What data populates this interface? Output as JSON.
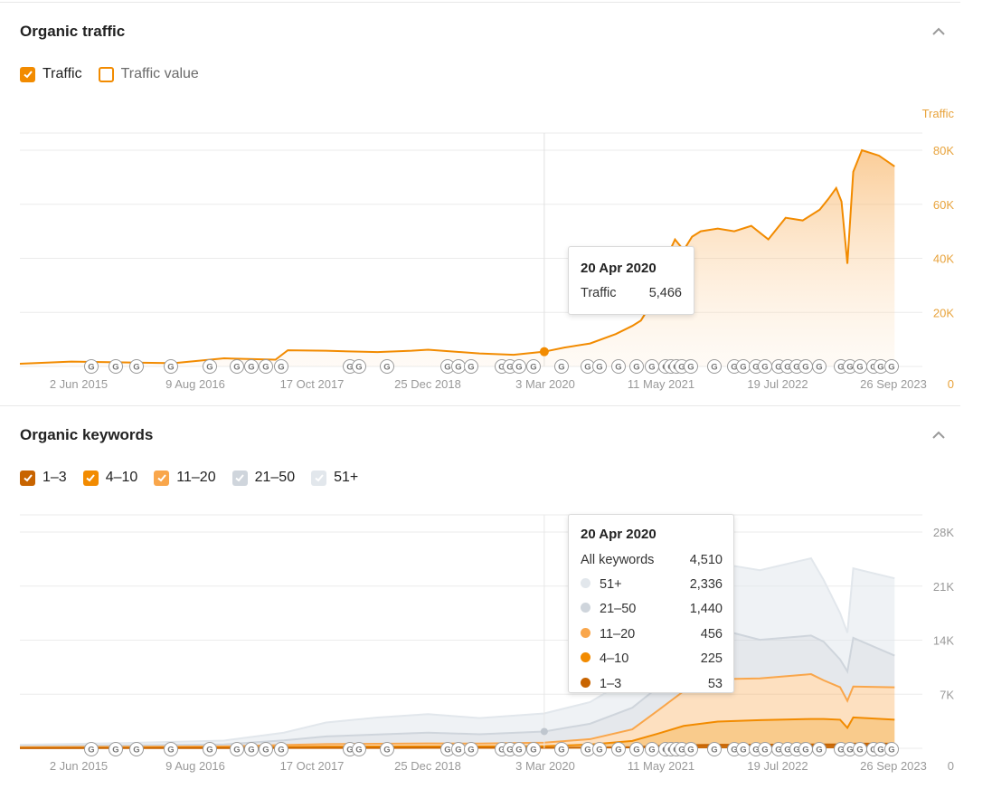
{
  "colors": {
    "traffic_orange": "#f28b00",
    "dark_orange": "#c86400",
    "mid_orange": "#f28b00",
    "light_orange": "#f9a64b",
    "gray_2150": "#cfd5dc",
    "gray_51": "#e2e7ec",
    "axis_text": "#999999",
    "traffic_axis_text": "#e8a33c"
  },
  "traffic": {
    "title": "Organic traffic",
    "legend": [
      {
        "label": "Traffic",
        "checked": true
      },
      {
        "label": "Traffic value",
        "checked": false
      }
    ],
    "tooltip": {
      "date": "20 Apr 2020",
      "label": "Traffic",
      "value": "5,466"
    },
    "chart_data": {
      "type": "area",
      "title": "",
      "xlabel": "",
      "ylabel": "Traffic",
      "ylim": [
        0,
        80000
      ],
      "ytick_labels": [
        "0",
        "20K",
        "40K",
        "60K",
        "80K"
      ],
      "ytick_values": [
        0,
        20000,
        40000,
        60000,
        80000
      ],
      "xtick_labels": [
        "2 Jun 2015",
        "9 Aug 2016",
        "17 Oct 2017",
        "25 Dec 2018",
        "3 Mar 2020",
        "11 May 2021",
        "19 Jul 2022",
        "26 Sep 2023"
      ],
      "x_range": [
        "2015-03-01",
        "2023-12-15"
      ],
      "grid": true,
      "highlight": {
        "x": "2020-04-20",
        "y": 5466
      },
      "series": [
        {
          "name": "Traffic",
          "color": "#f28b00",
          "x": [
            "2015-03-01",
            "2015-09-01",
            "2016-03-01",
            "2016-09-01",
            "2017-03-01",
            "2017-09-01",
            "2017-10-15",
            "2018-03-01",
            "2018-09-01",
            "2019-01-01",
            "2019-03-01",
            "2019-09-01",
            "2020-01-01",
            "2020-04-20",
            "2020-07-01",
            "2020-10-01",
            "2021-01-01",
            "2021-03-01",
            "2021-04-01",
            "2021-05-01",
            "2021-06-01",
            "2021-07-01",
            "2021-08-01",
            "2021-09-01",
            "2021-10-01",
            "2021-11-01",
            "2022-01-01",
            "2022-03-01",
            "2022-05-01",
            "2022-07-01",
            "2022-09-01",
            "2022-11-01",
            "2023-01-01",
            "2023-02-01",
            "2023-03-01",
            "2023-03-20",
            "2023-04-10",
            "2023-05-01",
            "2023-06-01",
            "2023-08-01",
            "2023-09-26"
          ],
          "y": [
            1000,
            1800,
            1500,
            1200,
            3000,
            2500,
            6000,
            5800,
            5300,
            5800,
            6200,
            4800,
            4300,
            5466,
            7000,
            8500,
            12000,
            15000,
            17000,
            22000,
            30000,
            40000,
            47000,
            43000,
            48000,
            50000,
            51000,
            50000,
            52000,
            47000,
            55000,
            54000,
            58000,
            62000,
            66000,
            61000,
            38000,
            72000,
            80000,
            78000,
            74000
          ]
        }
      ]
    }
  },
  "keywords": {
    "title": "Organic keywords",
    "legend": [
      {
        "label": "1–3",
        "checked": true,
        "color": "#c86400"
      },
      {
        "label": "4–10",
        "checked": true,
        "color": "#f28b00"
      },
      {
        "label": "11–20",
        "checked": true,
        "color": "#f9a64b"
      },
      {
        "label": "21–50",
        "checked": true,
        "color": "#cfd5dc"
      },
      {
        "label": "51+",
        "checked": true,
        "color": "#e2e7ec"
      }
    ],
    "tooltip": {
      "date": "20 Apr 2020",
      "total_label": "All keywords",
      "total_value": "4,510",
      "rows": [
        {
          "label": "51+",
          "value": "2,336",
          "color": "#e2e7ec"
        },
        {
          "label": "21–50",
          "value": "1,440",
          "color": "#cfd5dc"
        },
        {
          "label": "11–20",
          "value": "456",
          "color": "#f9a64b"
        },
        {
          "label": "4–10",
          "value": "225",
          "color": "#f28b00"
        },
        {
          "label": "1–3",
          "value": "53",
          "color": "#c86400"
        }
      ]
    },
    "chart_data": {
      "type": "area",
      "title": "",
      "xlabel": "",
      "ylabel": "",
      "ylim": [
        0,
        28000
      ],
      "ytick_labels": [
        "0",
        "7K",
        "14K",
        "21K",
        "28K"
      ],
      "ytick_values": [
        0,
        7000,
        14000,
        21000,
        28000
      ],
      "xtick_labels": [
        "2 Jun 2015",
        "9 Aug 2016",
        "17 Oct 2017",
        "25 Dec 2018",
        "3 Mar 2020",
        "11 May 2021",
        "19 Jul 2022",
        "26 Sep 2023"
      ],
      "x_range": [
        "2015-03-01",
        "2023-12-15"
      ],
      "grid": true,
      "stacked": true,
      "highlight": {
        "x": "2020-04-20",
        "y": 2174
      },
      "x": [
        "2015-03-01",
        "2016-03-01",
        "2017-03-01",
        "2017-10-01",
        "2018-03-01",
        "2018-09-01",
        "2019-03-01",
        "2019-09-01",
        "2020-04-20",
        "2020-10-01",
        "2021-03-01",
        "2021-06-01",
        "2021-09-01",
        "2022-01-01",
        "2022-06-01",
        "2022-12-01",
        "2023-01-15",
        "2023-03-15",
        "2023-04-10",
        "2023-05-01",
        "2023-09-26"
      ],
      "series": [
        {
          "name": "1–3",
          "color": "#c86400",
          "values": [
            20,
            25,
            30,
            45,
            50,
            50,
            55,
            55,
            53,
            80,
            150,
            300,
            400,
            450,
            450,
            500,
            500,
            500,
            450,
            600,
            600
          ]
        },
        {
          "name": "4–10",
          "color": "#f28b00",
          "values": [
            40,
            55,
            70,
            130,
            170,
            180,
            190,
            190,
            225,
            400,
            800,
            1600,
            2500,
            3000,
            3200,
            3300,
            3300,
            3200,
            2200,
            3400,
            3100
          ]
        },
        {
          "name": "11–20",
          "color": "#f9a64b",
          "values": [
            80,
            110,
            150,
            250,
            320,
            350,
            380,
            370,
            456,
            700,
            1500,
            3000,
            4500,
            5500,
            5400,
            5800,
            5000,
            4200,
            3500,
            4000,
            4200
          ]
        },
        {
          "name": "21–50",
          "color": "#cfd5dc",
          "values": [
            120,
            180,
            250,
            600,
            1000,
            1200,
            1400,
            1200,
            1440,
            2000,
            2800,
            3000,
            5500,
            6500,
            5000,
            5000,
            5000,
            3600,
            3800,
            6300,
            4100
          ]
        },
        {
          "name": "51+",
          "color": "#e2e7ec",
          "values": [
            200,
            300,
            500,
            1000,
            1800,
            2200,
            2400,
            2100,
            2336,
            2800,
            4000,
            5500,
            6500,
            8500,
            9000,
            10000,
            8000,
            6000,
            5000,
            9000,
            10000
          ]
        }
      ]
    }
  }
}
